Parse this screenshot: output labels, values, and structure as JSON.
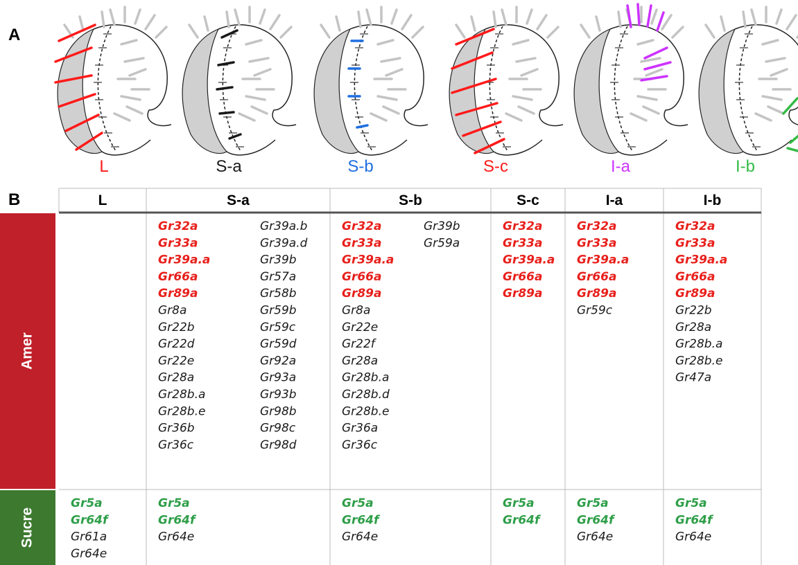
{
  "panel_a": {
    "label": "A",
    "items": [
      {
        "label": "L",
        "color": "#ff1a1a"
      },
      {
        "label": "S-a",
        "color": "#1a1a1a"
      },
      {
        "label": "S-b",
        "color": "#1f6fe0"
      },
      {
        "label": "S-c",
        "color": "#ff1a1a"
      },
      {
        "label": "I-a",
        "color": "#cc33ff"
      },
      {
        "label": "I-b",
        "color": "#33bb44"
      }
    ]
  },
  "panel_b": {
    "label": "B",
    "columns": [
      "L",
      "S-a",
      "S-b",
      "S-c",
      "I-a",
      "I-b"
    ],
    "rows": [
      {
        "label": "Amer",
        "color": "#c0202a",
        "highlight_color": "#e8201c",
        "cells": [
          {
            "highlighted": [],
            "other": []
          },
          {
            "highlighted": [
              "Gr32a",
              "Gr33a",
              "Gr39a.a",
              "Gr66a",
              "Gr89a"
            ],
            "other": [
              "Gr8a",
              "Gr22b",
              "Gr22d",
              "Gr22e",
              "Gr28a",
              "Gr28b.a",
              "Gr28b.e",
              "Gr36b",
              "Gr36c",
              "Gr39a.b",
              "Gr39a.d",
              "Gr39b",
              "Gr57a",
              "Gr58b",
              "Gr59b",
              "Gr59c",
              "Gr59d",
              "Gr92a",
              "Gr93a",
              "Gr93b",
              "Gr98b",
              "Gr98c",
              "Gr98d"
            ]
          },
          {
            "highlighted": [
              "Gr32a",
              "Gr33a",
              "Gr39a.a",
              "Gr66a",
              "Gr89a"
            ],
            "other": [
              "Gr8a",
              "Gr22e",
              "Gr22f",
              "Gr28a",
              "Gr28b.a",
              "Gr28b.d",
              "Gr28b.e",
              "Gr36a",
              "Gr36c",
              "Gr39b",
              "Gr59a"
            ]
          },
          {
            "highlighted": [
              "Gr32a",
              "Gr33a",
              "Gr39a.a",
              "Gr66a",
              "Gr89a"
            ],
            "other": []
          },
          {
            "highlighted": [
              "Gr32a",
              "Gr33a",
              "Gr39a.a",
              "Gr66a",
              "Gr89a"
            ],
            "other": [
              "Gr59c"
            ]
          },
          {
            "highlighted": [
              "Gr32a",
              "Gr33a",
              "Gr39a.a",
              "Gr66a",
              "Gr89a"
            ],
            "other": [
              "Gr22b",
              "Gr28a",
              "Gr28b.a",
              "Gr28b.e",
              "Gr47a"
            ]
          }
        ]
      },
      {
        "label": "Sucre",
        "color": "#3d7a30",
        "highlight_color": "#2e9e48",
        "cells": [
          {
            "highlighted": [
              "Gr5a",
              "Gr64f"
            ],
            "other": [
              "Gr61a",
              "Gr64e"
            ]
          },
          {
            "highlighted": [
              "Gr5a",
              "Gr64f"
            ],
            "other": [
              "Gr64e"
            ]
          },
          {
            "highlighted": [
              "Gr5a",
              "Gr64f"
            ],
            "other": [
              "Gr64e"
            ]
          },
          {
            "highlighted": [
              "Gr5a",
              "Gr64f"
            ],
            "other": []
          },
          {
            "highlighted": [
              "Gr5a",
              "Gr64f"
            ],
            "other": [
              "Gr64e"
            ]
          },
          {
            "highlighted": [
              "Gr5a",
              "Gr64f"
            ],
            "other": [
              "Gr64e"
            ]
          }
        ]
      }
    ]
  }
}
